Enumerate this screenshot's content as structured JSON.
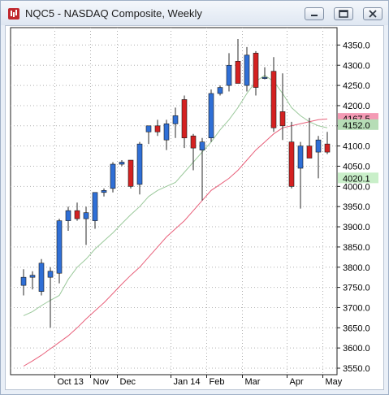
{
  "window": {
    "title": "NQC5 - NASDAQ Composite, Weekly",
    "icon": "candlestick-app-icon",
    "buttons": [
      {
        "name": "minimize-button",
        "icon": "minimize-icon"
      },
      {
        "name": "restore-button",
        "icon": "restore-icon"
      },
      {
        "name": "close-button",
        "icon": "close-icon"
      }
    ]
  },
  "colors": {
    "up_candle": "#2f6fd6",
    "down_candle": "#d42121",
    "ma_fast": "#9bc99b",
    "ma_slow": "#e8607a",
    "price_tag_fast": "#b6ddb6",
    "price_tag_slow": "#f49ab4",
    "price_tag_last": "#c9efc9"
  },
  "chart_data": {
    "type": "candlestick",
    "symbol": "NQC5",
    "ylim": [
      3525,
      4375
    ],
    "ytick_labels": [
      "3550.0",
      "3600.0",
      "3650.0",
      "3700.0",
      "3750.0",
      "3800.0",
      "3850.0",
      "3900.0",
      "3950.0",
      "4000.0",
      "4050.0",
      "4100.0",
      "4150.0",
      "4200.0",
      "4250.0",
      "4300.0",
      "4350.0"
    ],
    "ytick_values": [
      3550,
      3600,
      3650,
      3700,
      3750,
      3800,
      3850,
      3900,
      3950,
      4000,
      4050,
      4100,
      4150,
      4200,
      4250,
      4300,
      4350
    ],
    "x_labels": [
      "Oct 13",
      "Nov",
      "Dec",
      "Jan 14",
      "Feb",
      "Mar",
      "Apr",
      "May"
    ],
    "x_label_bar_index": [
      4,
      8,
      11,
      17,
      21,
      25,
      30,
      34
    ],
    "price_labels": {
      "ma_slow": "4167.5",
      "ma_fast": "4152.0",
      "ma_fast_low": "4020.1"
    },
    "grid": true,
    "candles": [
      {
        "o": 3755,
        "h": 3795,
        "l": 3730,
        "c": 3775
      },
      {
        "o": 3775,
        "h": 3790,
        "l": 3745,
        "c": 3780
      },
      {
        "o": 3740,
        "h": 3820,
        "l": 3730,
        "c": 3810
      },
      {
        "o": 3775,
        "h": 3800,
        "l": 3650,
        "c": 3790
      },
      {
        "o": 3785,
        "h": 3920,
        "l": 3760,
        "c": 3915
      },
      {
        "o": 3915,
        "h": 3950,
        "l": 3890,
        "c": 3940
      },
      {
        "o": 3940,
        "h": 3960,
        "l": 3915,
        "c": 3920
      },
      {
        "o": 3920,
        "h": 3950,
        "l": 3855,
        "c": 3935
      },
      {
        "o": 3915,
        "h": 3985,
        "l": 3895,
        "c": 3985
      },
      {
        "o": 3985,
        "h": 3995,
        "l": 3975,
        "c": 3990
      },
      {
        "o": 3995,
        "h": 4060,
        "l": 3985,
        "c": 4055
      },
      {
        "o": 4055,
        "h": 4065,
        "l": 4050,
        "c": 4060
      },
      {
        "o": 4065,
        "h": 4065,
        "l": 3995,
        "c": 4000
      },
      {
        "o": 4005,
        "h": 4110,
        "l": 3980,
        "c": 4105
      },
      {
        "o": 4135,
        "h": 4150,
        "l": 4105,
        "c": 4150
      },
      {
        "o": 4150,
        "h": 4165,
        "l": 4125,
        "c": 4135
      },
      {
        "o": 4115,
        "h": 4165,
        "l": 4090,
        "c": 4155
      },
      {
        "o": 4155,
        "h": 4195,
        "l": 4120,
        "c": 4175
      },
      {
        "o": 4215,
        "h": 4225,
        "l": 4095,
        "c": 4120
      },
      {
        "o": 4125,
        "h": 4130,
        "l": 4040,
        "c": 4095
      },
      {
        "o": 4090,
        "h": 4120,
        "l": 3965,
        "c": 4110
      },
      {
        "o": 4120,
        "h": 4240,
        "l": 4110,
        "c": 4230
      },
      {
        "o": 4230,
        "h": 4250,
        "l": 4225,
        "c": 4245
      },
      {
        "o": 4250,
        "h": 4330,
        "l": 4235,
        "c": 4300
      },
      {
        "o": 4310,
        "h": 4365,
        "l": 4255,
        "c": 4255
      },
      {
        "o": 4250,
        "h": 4345,
        "l": 4235,
        "c": 4325
      },
      {
        "o": 4330,
        "h": 4335,
        "l": 4225,
        "c": 4245
      },
      {
        "o": 4270,
        "h": 4295,
        "l": 4265,
        "c": 4270
      },
      {
        "o": 4285,
        "h": 4320,
        "l": 4135,
        "c": 4145
      },
      {
        "o": 4185,
        "h": 4280,
        "l": 4115,
        "c": 4150
      },
      {
        "o": 4110,
        "h": 4160,
        "l": 3995,
        "c": 4000
      },
      {
        "o": 4045,
        "h": 4110,
        "l": 3945,
        "c": 4100
      },
      {
        "o": 4100,
        "h": 4170,
        "l": 4070,
        "c": 4070
      },
      {
        "o": 4085,
        "h": 4125,
        "l": 4020,
        "c": 4115
      },
      {
        "o": 4105,
        "h": 4135,
        "l": 4080,
        "c": 4085
      }
    ],
    "series": [
      {
        "values": [
          3680,
          3690,
          3705,
          3718,
          3730,
          3770,
          3800,
          3820,
          3845,
          3865,
          3885,
          3908,
          3930,
          3950,
          3975,
          3990,
          4000,
          4010,
          4035,
          4060,
          4085,
          4110,
          4140,
          4165,
          4195,
          4230,
          4260,
          4275,
          4260,
          4230,
          4195,
          4175,
          4160,
          4150,
          4145
        ]
      },
      {
        "values": [
          3555,
          3568,
          3582,
          3598,
          3614,
          3630,
          3650,
          3672,
          3692,
          3712,
          3735,
          3758,
          3780,
          3800,
          3825,
          3850,
          3875,
          3895,
          3915,
          3940,
          3965,
          3990,
          4005,
          4020,
          4040,
          4065,
          4090,
          4110,
          4130,
          4145,
          4150,
          4155,
          4160,
          4165,
          4167
        ]
      }
    ]
  }
}
